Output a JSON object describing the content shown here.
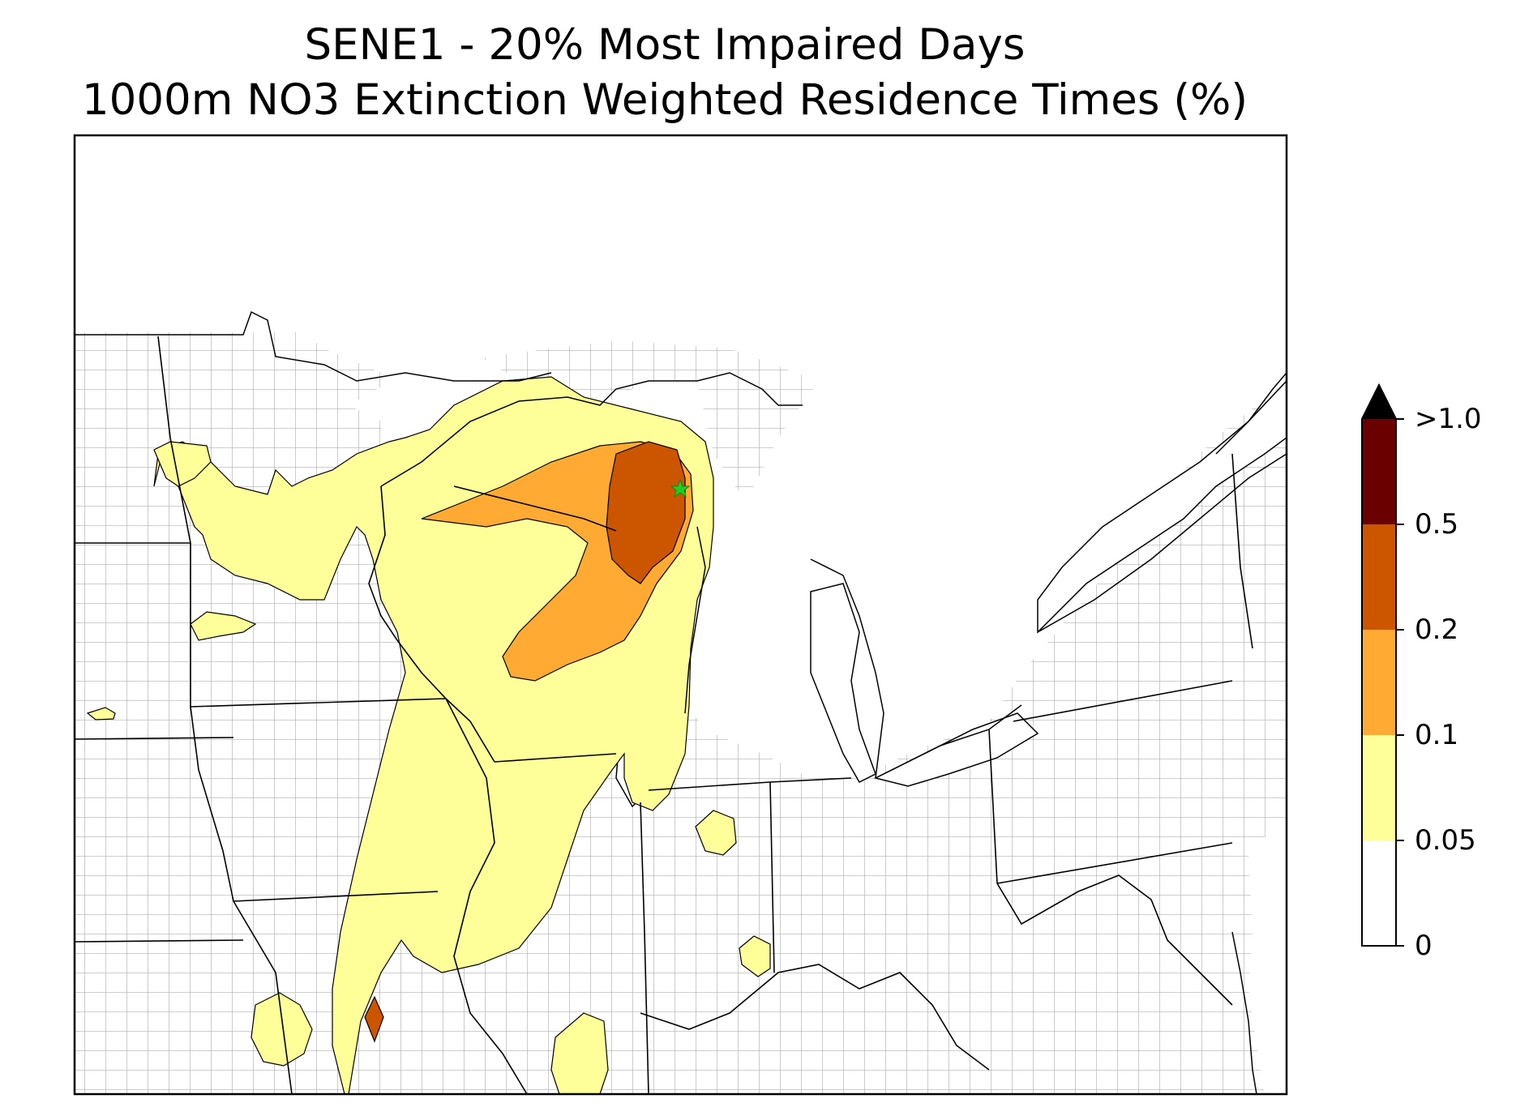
{
  "title": {
    "line1": "SENE1 - 20% Most Impaired Days",
    "line2": "1000m NO3 Extinction Weighted Residence Times (%)"
  },
  "site_marker": {
    "name": "SENE1",
    "color": "#22cc22",
    "icon": "star-icon"
  },
  "colorbar": {
    "extend": "max",
    "bins": [
      {
        "from": 0,
        "to": 0.05,
        "color": "#ffffff"
      },
      {
        "from": 0.05,
        "to": 0.1,
        "color": "#ffff99"
      },
      {
        "from": 0.1,
        "to": 0.2,
        "color": "#ffaa33"
      },
      {
        "from": 0.2,
        "to": 0.5,
        "color": "#cc5500"
      },
      {
        "from": 0.5,
        "to": 1.0,
        "color": "#6b0000"
      },
      {
        "from": 1.0,
        "to": null,
        "color": "#000000"
      }
    ],
    "tick_labels": [
      "0",
      "0.05",
      "0.1",
      "0.2",
      "0.5",
      ">1.0"
    ]
  },
  "map": {
    "county_line_color": "#aaaaaa",
    "state_line_color": "#000000",
    "contour_levels": [
      0.05,
      0.1,
      0.2,
      0.5
    ]
  }
}
